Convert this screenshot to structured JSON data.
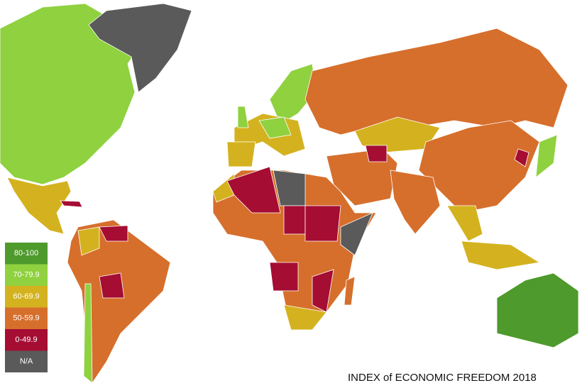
{
  "title": "INDEX of ECONOMIC FREEDOM 2018",
  "legend": [
    {
      "label": "80-100",
      "color": "#4e9a2c"
    },
    {
      "label": "70-79.9",
      "color": "#8fd13f"
    },
    {
      "label": "60-69.9",
      "color": "#d4b21f"
    },
    {
      "label": "50-59.9",
      "color": "#d66f2c"
    },
    {
      "label": "0-49.9",
      "color": "#a50d33"
    },
    {
      "label": "N/A",
      "color": "#5a5a5a"
    }
  ]
}
